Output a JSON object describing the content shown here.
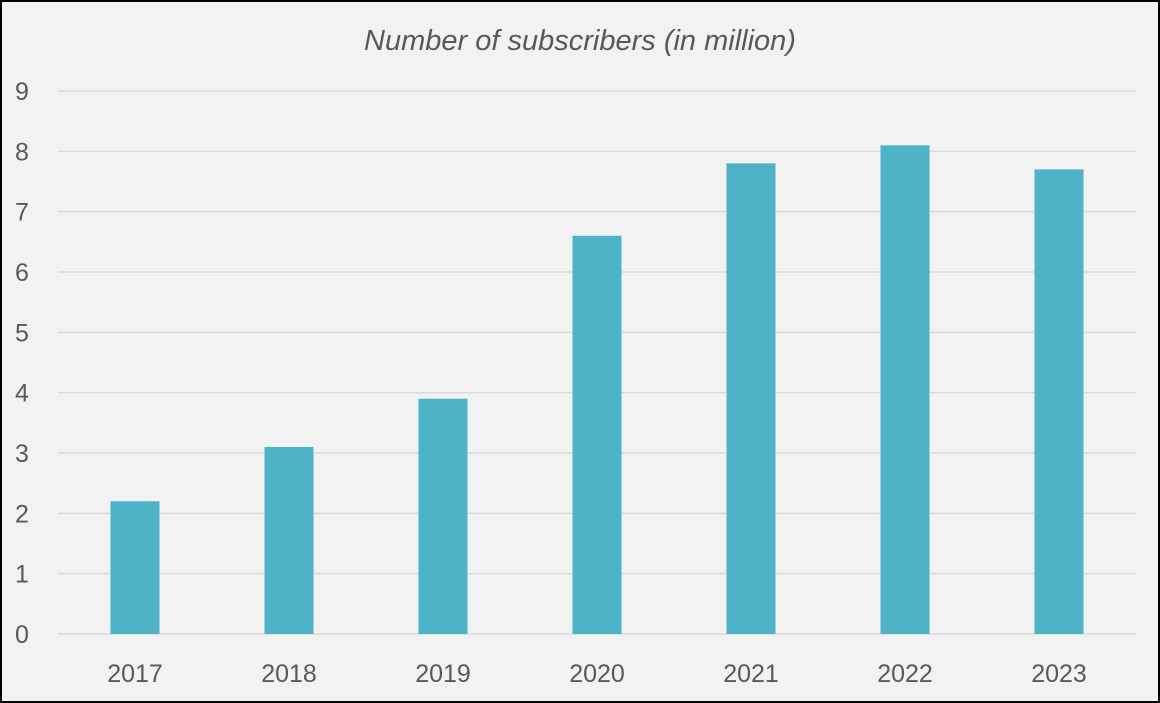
{
  "chart_data": {
    "type": "bar",
    "title": "Number of subscribers (in million)",
    "categories": [
      "2017",
      "2018",
      "2019",
      "2020",
      "2021",
      "2022",
      "2023"
    ],
    "values": [
      2.2,
      3.1,
      3.9,
      6.6,
      7.8,
      8.1,
      7.7
    ],
    "xlabel": "",
    "ylabel": "",
    "ylim": [
      0,
      9
    ],
    "yticks": [
      "0",
      "1",
      "2",
      "3",
      "4",
      "5",
      "6",
      "7",
      "8",
      "9"
    ],
    "grid": true,
    "bar_color": "#4fb3c8"
  }
}
